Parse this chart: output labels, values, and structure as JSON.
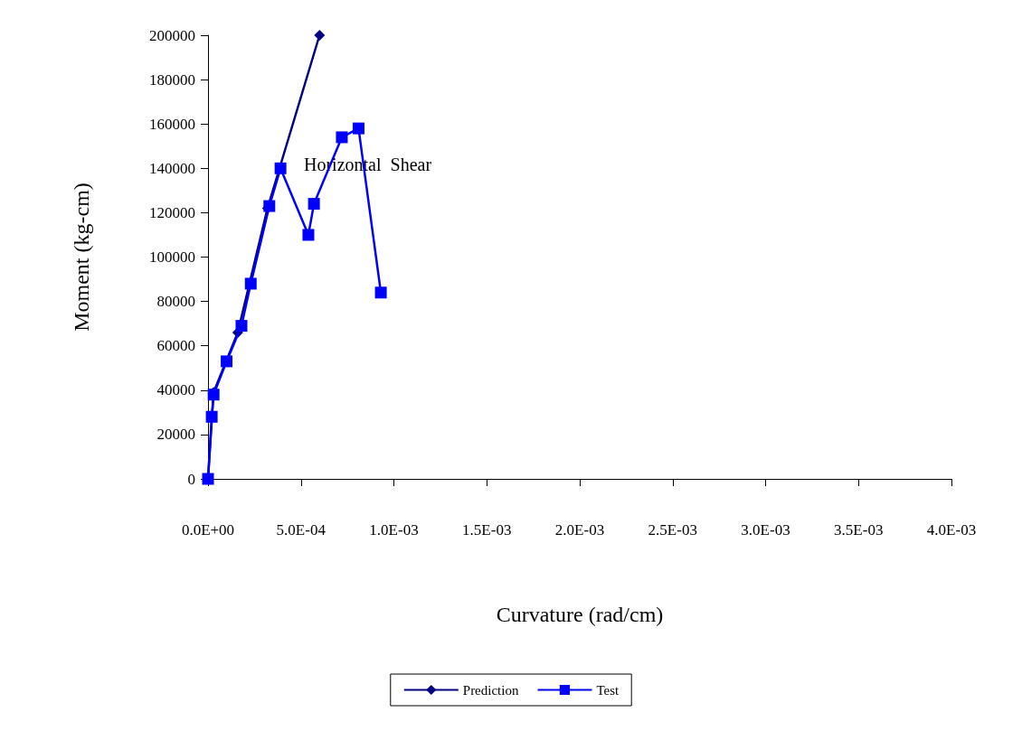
{
  "chart_data": {
    "type": "line",
    "xlabel": "Curvature (rad/cm)",
    "ylabel": "Moment (kg-cm)",
    "xlim": [
      0,
      0.004
    ],
    "xticks": [
      {
        "value": 0,
        "label": "0.0E+00"
      },
      {
        "value": 0.0005,
        "label": "5.0E-04"
      },
      {
        "value": 0.001,
        "label": "1.0E-03"
      },
      {
        "value": 0.0015,
        "label": "1.5E-03"
      },
      {
        "value": 0.002,
        "label": "2.0E-03"
      },
      {
        "value": 0.0025,
        "label": "2.5E-03"
      },
      {
        "value": 0.003,
        "label": "3.0E-03"
      },
      {
        "value": 0.0035,
        "label": "3.5E-03"
      },
      {
        "value": 0.004,
        "label": "4.0E-03"
      }
    ],
    "ylim": [
      0,
      200000
    ],
    "yticks": [
      0,
      20000,
      40000,
      60000,
      80000,
      100000,
      120000,
      140000,
      160000,
      180000,
      200000
    ],
    "grid": false,
    "legend": "bottom",
    "series": [
      {
        "name": "Prediction",
        "color": "#000080",
        "marker": "diamond",
        "x": [
          0,
          3e-05,
          0.00016,
          0.00032,
          0.0006
        ],
        "values": [
          0,
          39000,
          66000,
          122000,
          200000
        ]
      },
      {
        "name": "Test",
        "color": "#0000ff",
        "marker": "square",
        "x": [
          0,
          2e-05,
          3e-05,
          0.0001,
          0.00018,
          0.00023,
          0.00033,
          0.00039,
          0.00054,
          0.00057,
          0.00072,
          0.00081,
          0.00093
        ],
        "values": [
          0,
          28000,
          38000,
          53000,
          69000,
          88000,
          123000,
          140000,
          110000,
          124000,
          154000,
          158000,
          84000
        ]
      }
    ],
    "annotations": [
      "Horizontal  Shear"
    ]
  }
}
